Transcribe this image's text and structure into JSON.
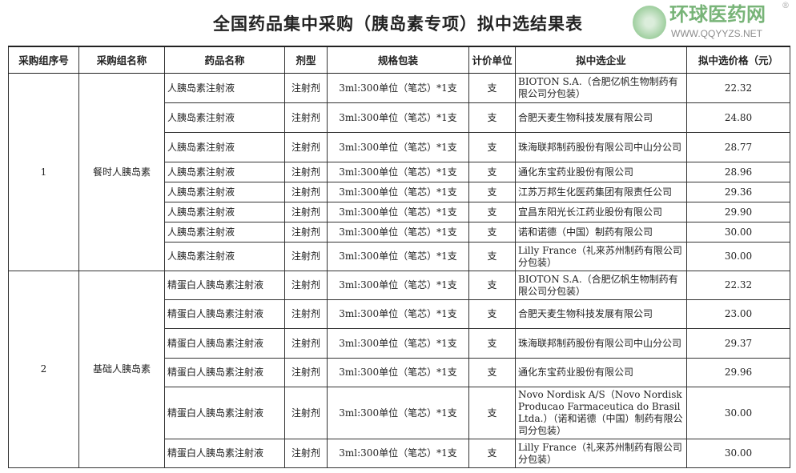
{
  "title": "全国药品集中采购（胰岛素专项）拟中选结果表",
  "headers": [
    "采购组序号",
    "采购组名称",
    "药品名称",
    "剂型",
    "规格包装",
    "计价单位",
    "拟中选企业",
    "拟中选价格（元）"
  ],
  "groups": [
    {
      "no": "1",
      "name": "餐时人胰岛素",
      "rows": [
        [
          "人胰岛素注射液",
          "注射剂",
          "3ml:300单位（笔芯）*1支",
          "支",
          "BIOTON S.A.（合肥亿帆生物制药有限公司分包装）",
          "22.32"
        ],
        [
          "人胰岛素注射液",
          "注射剂",
          "3ml:300单位（笔芯）*1支",
          "支",
          "合肥天麦生物科技发展有限公司",
          "24.80"
        ],
        [
          "人胰岛素注射液",
          "注射剂",
          "3ml:300单位（笔芯）*1支",
          "支",
          "珠海联邦制药股份有限公司中山分公司",
          "28.77"
        ],
        [
          "人胰岛素注射液",
          "注射剂",
          "3ml:300单位（笔芯）*1支",
          "支",
          "通化东宝药业股份有限公司",
          "28.96"
        ],
        [
          "人胰岛素注射液",
          "注射剂",
          "3ml:300单位（笔芯）*1支",
          "支",
          "江苏万邦生化医药集团有限责任公司",
          "29.36"
        ],
        [
          "人胰岛素注射液",
          "注射剂",
          "3ml:300单位（笔芯）*1支",
          "支",
          "宜昌东阳光长江药业股份有限公司",
          "29.90"
        ],
        [
          "人胰岛素注射液",
          "注射剂",
          "3ml:300单位（笔芯）*1支",
          "支",
          "诺和诺德（中国）制药有限公司",
          "30.00"
        ],
        [
          "人胰岛素注射液",
          "注射剂",
          "3ml:300单位（笔芯）*1支",
          "支",
          "Lilly France（礼来苏州制药有限公司分包装）",
          "30.00"
        ]
      ]
    },
    {
      "no": "2",
      "name": "基础人胰岛素",
      "rows": [
        [
          "精蛋白人胰岛素注射液",
          "注射剂",
          "3ml:300单位（笔芯）*1支",
          "支",
          "BIOTON S.A.（合肥亿帆生物制药有限公司分包装）",
          "22.32"
        ],
        [
          "精蛋白人胰岛素注射液",
          "注射剂",
          "3ml:300单位（笔芯）*1支",
          "支",
          "合肥天麦生物科技发展有限公司",
          "23.00"
        ],
        [
          "精蛋白人胰岛素注射液",
          "注射剂",
          "3ml:300单位（笔芯）*1支",
          "支",
          "珠海联邦制药股份有限公司中山分公司",
          "29.37"
        ],
        [
          "精蛋白人胰岛素注射液",
          "注射剂",
          "3ml:300单位（笔芯）*1支",
          "支",
          "通化东宝药业股份有限公司",
          "29.96"
        ],
        [
          "精蛋白人胰岛素注射液",
          "注射剂",
          "3ml:300单位（笔芯）*1支",
          "支",
          "Novo Nordisk A/S（Novo Nordisk Producao Farmaceutica do Brasil Ltda.）（诺和诺德（中国）制药有限公司分包装）",
          "30.00"
        ],
        [
          "精蛋白人胰岛素注射液",
          "注射剂",
          "3ml:300单位（笔芯）*1支",
          "支",
          "Lilly France（礼来苏州制药有限公司分包装）",
          "30.00"
        ]
      ]
    }
  ],
  "watermark": {
    "name": "环球医药网",
    "url": "WWW.QQYYZS.NET",
    "mark": "®"
  }
}
